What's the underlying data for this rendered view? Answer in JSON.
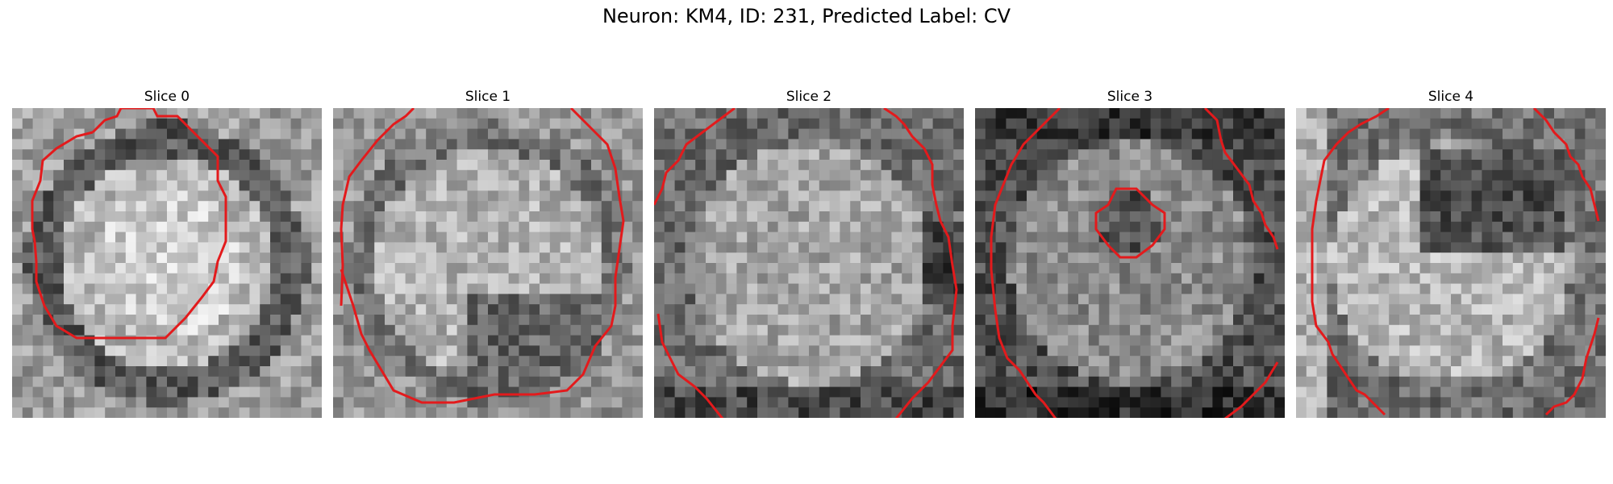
{
  "figure": {
    "title": "Neuron: KM4, ID: 231, Predicted Label: CV"
  },
  "panels": [
    {
      "title": "Slice 0"
    },
    {
      "title": "Slice 1"
    },
    {
      "title": "Slice 2"
    },
    {
      "title": "Slice 3"
    },
    {
      "title": "Slice 4"
    }
  ],
  "colors": {
    "contour": "#e31a1c",
    "background": "#ffffff"
  }
}
